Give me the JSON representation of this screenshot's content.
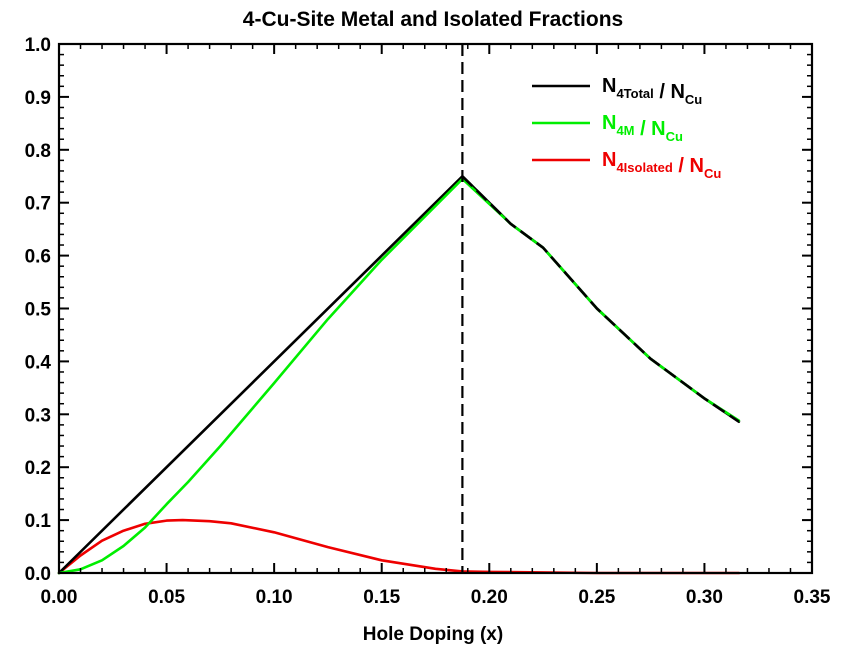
{
  "chart_data": {
    "type": "line",
    "title": "4-Cu-Site Metal and Isolated Fractions",
    "xlabel": "Hole Doping (x)",
    "ylabel": "",
    "xlim": [
      0,
      0.35
    ],
    "ylim": [
      0,
      1.0
    ],
    "x_ticks": [
      "0.00",
      "0.05",
      "0.10",
      "0.15",
      "0.20",
      "0.25",
      "0.30",
      "0.35"
    ],
    "y_ticks": [
      "0.0",
      "0.1",
      "0.2",
      "0.3",
      "0.4",
      "0.5",
      "0.6",
      "0.7",
      "0.8",
      "0.9",
      "1.0"
    ],
    "grid": false,
    "legend_position": "top-right",
    "vline": {
      "x": 0.1875,
      "style": "dashed",
      "color": "#000000"
    },
    "series": [
      {
        "key": "total",
        "legend": {
          "main": "N",
          "sub": "4Total",
          "sep": " / N",
          "sub2": "Cu"
        },
        "color": "#000000",
        "x": [
          0,
          0.1875,
          0.21,
          0.225,
          0.25,
          0.275,
          0.3,
          0.316
        ],
        "y": [
          0,
          0.75,
          0.66,
          0.615,
          0.5,
          0.405,
          0.33,
          0.286
        ]
      },
      {
        "key": "metal",
        "legend": {
          "main": "N",
          "sub": "4M",
          "sep": " / N",
          "sub2": "Cu"
        },
        "color": "#00ee00",
        "x": [
          0,
          0.01,
          0.02,
          0.03,
          0.04,
          0.05,
          0.06,
          0.075,
          0.1,
          0.125,
          0.15,
          0.1875,
          0.21,
          0.225,
          0.25,
          0.275,
          0.3,
          0.316
        ],
        "y": [
          0,
          0.007,
          0.024,
          0.051,
          0.086,
          0.13,
          0.172,
          0.24,
          0.359,
          0.48,
          0.592,
          0.745,
          0.66,
          0.615,
          0.5,
          0.405,
          0.33,
          0.288
        ]
      },
      {
        "key": "isolated",
        "legend": {
          "main": "N",
          "sub": "4Isolated",
          "sep": " / N",
          "sub2": "Cu"
        },
        "color": "#ee0000",
        "x": [
          0,
          0.01,
          0.02,
          0.03,
          0.04,
          0.05,
          0.0575,
          0.07,
          0.08,
          0.1,
          0.125,
          0.15,
          0.175,
          0.1875,
          0.2,
          0.25,
          0.3,
          0.316
        ],
        "y": [
          0,
          0.033,
          0.061,
          0.08,
          0.093,
          0.099,
          0.1,
          0.098,
          0.094,
          0.077,
          0.049,
          0.024,
          0.008,
          0.003,
          0.002,
          0,
          0,
          0
        ]
      }
    ]
  }
}
